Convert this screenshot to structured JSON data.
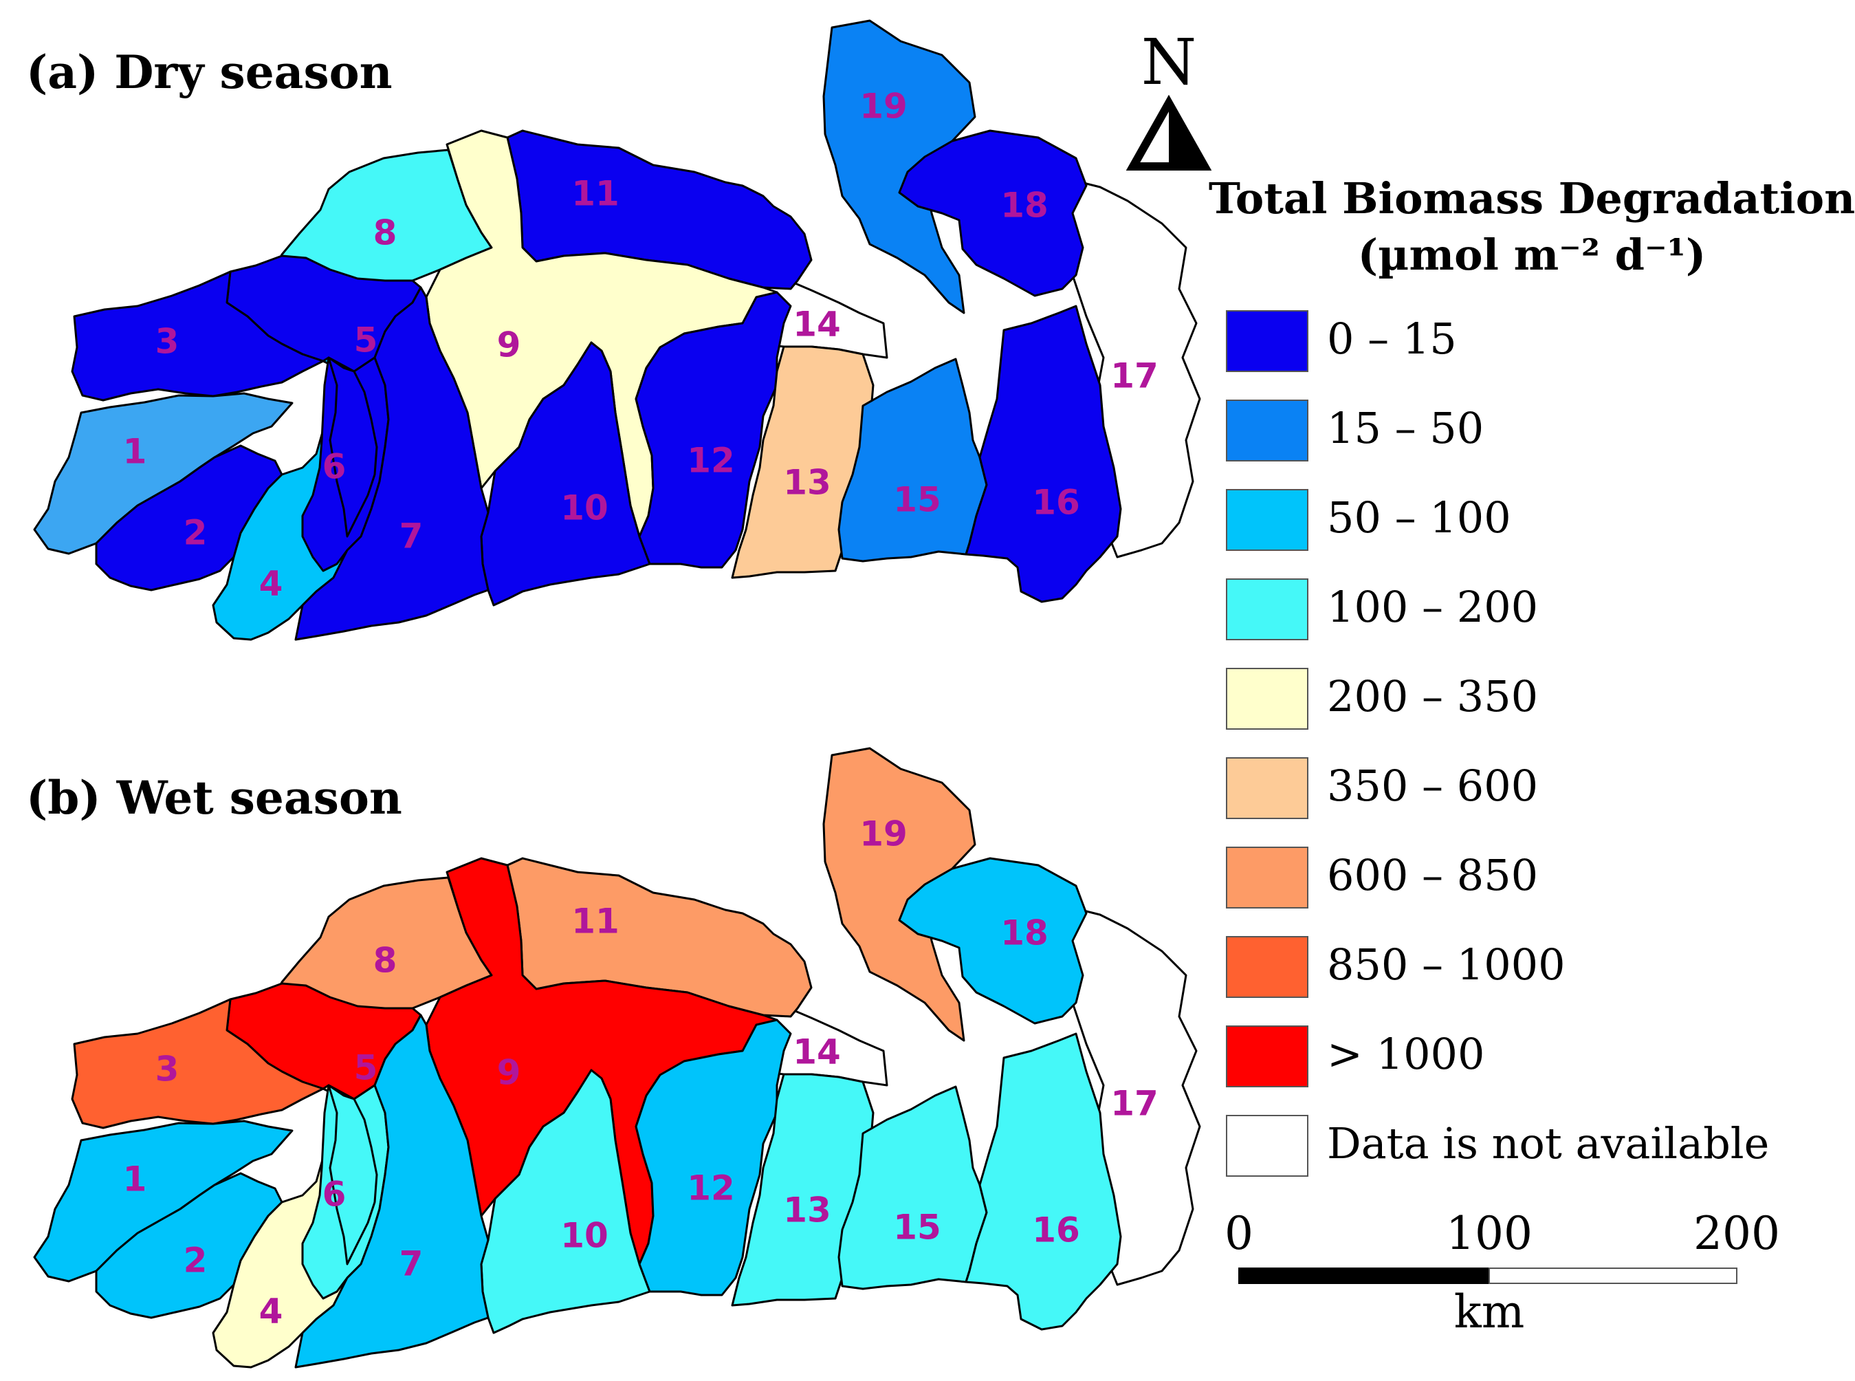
{
  "panels": [
    {
      "id": "dry",
      "title": "(a) Dry season",
      "regions": [
        {
          "id": "1",
          "color": "#3ca6f2"
        },
        {
          "id": "2",
          "color": "#0a00f0"
        },
        {
          "id": "3",
          "color": "#0a00f0"
        },
        {
          "id": "4",
          "color": "#00c4fb"
        },
        {
          "id": "5",
          "color": "#0a00f0"
        },
        {
          "id": "6",
          "color": "#0a00f0"
        },
        {
          "id": "7",
          "color": "#0a00f0"
        },
        {
          "id": "8",
          "color": "#45f8f8"
        },
        {
          "id": "9",
          "color": "#ffffcc"
        },
        {
          "id": "10",
          "color": "#0a00f0"
        },
        {
          "id": "11",
          "color": "#0a00f0"
        },
        {
          "id": "12",
          "color": "#0a00f0"
        },
        {
          "id": "13",
          "color": "#fdcb97"
        },
        {
          "id": "14",
          "color": "#ffffff"
        },
        {
          "id": "15",
          "color": "#0a82f4"
        },
        {
          "id": "16",
          "color": "#0a00f0"
        },
        {
          "id": "17",
          "color": "#ffffff"
        },
        {
          "id": "18",
          "color": "#0a00f0"
        },
        {
          "id": "19",
          "color": "#0a82f4"
        }
      ]
    },
    {
      "id": "wet",
      "title": "(b) Wet season",
      "regions": [
        {
          "id": "1",
          "color": "#00c4fb"
        },
        {
          "id": "2",
          "color": "#00c4fb"
        },
        {
          "id": "3",
          "color": "#ff6130"
        },
        {
          "id": "4",
          "color": "#ffffcc"
        },
        {
          "id": "5",
          "color": "#ff0000"
        },
        {
          "id": "6",
          "color": "#45f8f8"
        },
        {
          "id": "7",
          "color": "#00c4fb"
        },
        {
          "id": "8",
          "color": "#fd9b66"
        },
        {
          "id": "9",
          "color": "#ff0000"
        },
        {
          "id": "10",
          "color": "#45f8f8"
        },
        {
          "id": "11",
          "color": "#fd9b66"
        },
        {
          "id": "12",
          "color": "#00c4fb"
        },
        {
          "id": "13",
          "color": "#45f8f8"
        },
        {
          "id": "14",
          "color": "#ffffff"
        },
        {
          "id": "15",
          "color": "#45f8f8"
        },
        {
          "id": "16",
          "color": "#45f8f8"
        },
        {
          "id": "17",
          "color": "#ffffff"
        },
        {
          "id": "18",
          "color": "#00c4fb"
        },
        {
          "id": "19",
          "color": "#fd9b66"
        }
      ]
    }
  ],
  "north_arrow": {
    "label": "N"
  },
  "legend": {
    "title_line1": "Total Biomass Degradation",
    "title_line2": "(µmol m⁻² d⁻¹)",
    "classes": [
      {
        "label": "0 – 15",
        "color": "#0a00f0"
      },
      {
        "label": "15 – 50",
        "color": "#0a82f4"
      },
      {
        "label": "50 – 100",
        "color": "#00c4fb"
      },
      {
        "label": "100 – 200",
        "color": "#45f8f8"
      },
      {
        "label": "200 – 350",
        "color": "#ffffcc"
      },
      {
        "label": "350 – 600",
        "color": "#fdcb97"
      },
      {
        "label": "600 – 850",
        "color": "#fd9b66"
      },
      {
        "label": "850 – 1000",
        "color": "#ff6130"
      },
      {
        "label": "> 1000",
        "color": "#ff0000"
      },
      {
        "label": "Data is not available",
        "color": "#ffffff"
      }
    ]
  },
  "scale_bar": {
    "ticks": [
      "0",
      "100",
      "200"
    ],
    "unit": "km"
  }
}
